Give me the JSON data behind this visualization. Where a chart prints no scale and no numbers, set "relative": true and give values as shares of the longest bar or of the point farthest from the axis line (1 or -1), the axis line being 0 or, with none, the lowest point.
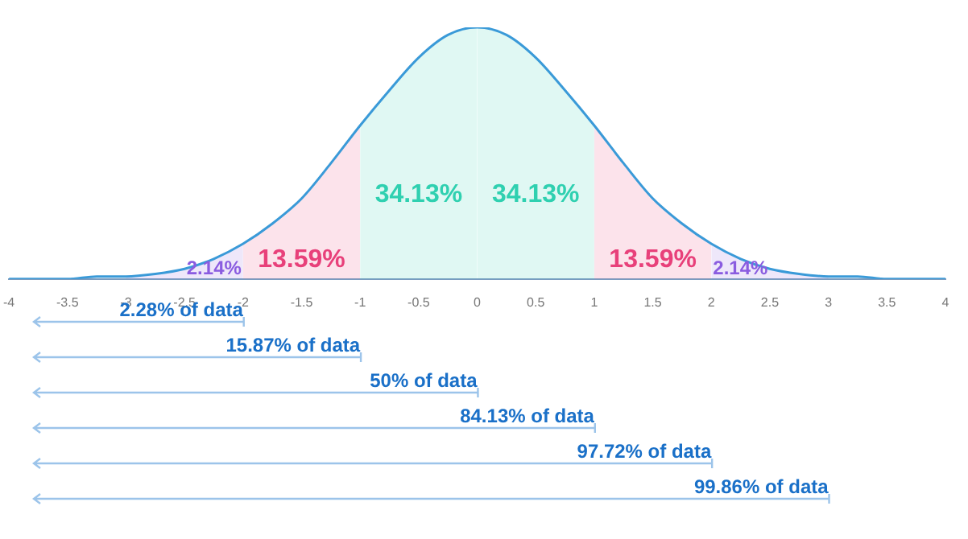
{
  "chart_data": {
    "type": "line",
    "relative": true,
    "xlim": [
      -4,
      4
    ],
    "xticks": [
      -4,
      -3.5,
      -3,
      -2.5,
      -2,
      -1.5,
      -1,
      -0.5,
      0,
      0.5,
      1,
      1.5,
      2,
      2.5,
      3,
      3.5,
      4
    ],
    "legend": false,
    "marker": "none",
    "series": [
      {
        "type": "line",
        "color": "#3a9ad8",
        "x": [
          -4,
          -3.75,
          -3.5,
          -3.25,
          -3,
          -2.75,
          -2.5,
          -2.25,
          -2,
          -1.75,
          -1.5,
          -1.25,
          -1,
          -0.75,
          -0.5,
          -0.25,
          0,
          0.25,
          0.5,
          0.75,
          1,
          1.25,
          1.5,
          1.75,
          2,
          2.25,
          2.5,
          2.75,
          3,
          3.25,
          3.5,
          3.75,
          4
        ],
        "values": [
          0,
          0,
          0,
          0.01,
          0.01,
          0.02,
          0.04,
          0.08,
          0.14,
          0.22,
          0.32,
          0.46,
          0.61,
          0.75,
          0.88,
          0.97,
          1,
          0.97,
          0.88,
          0.75,
          0.61,
          0.46,
          0.32,
          0.22,
          0.14,
          0.08,
          0.04,
          0.02,
          0.01,
          0.01,
          0,
          0,
          0
        ]
      },
      {
        "type": "area",
        "color": "#8a5ce0",
        "x": [
          -3,
          -2.75,
          -2.5,
          -2.25,
          -2
        ],
        "values": [
          0.01,
          0.02,
          0.04,
          0.08,
          0.14
        ]
      },
      {
        "type": "area",
        "color": "#e8407a",
        "x": [
          -2,
          -1.75,
          -1.5,
          -1.25,
          -1
        ],
        "values": [
          0.14,
          0.22,
          0.32,
          0.46,
          0.61
        ]
      },
      {
        "type": "area",
        "color": "#2fd0b0",
        "x": [
          -1,
          -0.75,
          -0.5,
          -0.25,
          0
        ],
        "values": [
          0.61,
          0.75,
          0.88,
          0.97,
          1
        ]
      },
      {
        "type": "area",
        "color": "#2fd0b0",
        "x": [
          0,
          0.25,
          0.5,
          0.75,
          1
        ],
        "values": [
          1,
          0.97,
          0.88,
          0.75,
          0.61
        ]
      },
      {
        "type": "area",
        "color": "#e8407a",
        "x": [
          1,
          1.25,
          1.5,
          1.75,
          2
        ],
        "values": [
          0.61,
          0.46,
          0.32,
          0.22,
          0.14
        ]
      },
      {
        "type": "area",
        "color": "#8a5ce0",
        "x": [
          2,
          2.25,
          2.5,
          2.75,
          3
        ],
        "values": [
          0.14,
          0.08,
          0.04,
          0.02,
          0.01
        ]
      }
    ],
    "annotations": [
      "2.14%",
      "13.59%",
      "34.13%",
      "34.13%",
      "13.59%",
      "2.14%",
      "2.28% of data",
      "15.87% of data",
      "50% of data",
      "84.13% of data",
      "97.72% of data",
      "99.86% of data"
    ]
  }
}
